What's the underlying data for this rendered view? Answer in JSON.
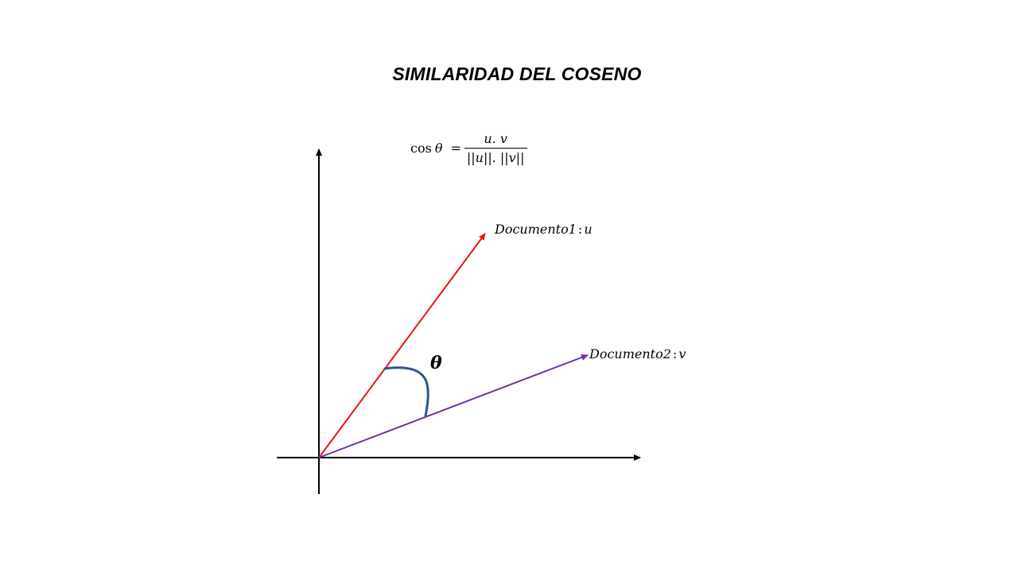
{
  "title": "SIMILARIDAD DEL COSENO",
  "formula": {
    "cos": "cos",
    "theta": "θ",
    "equals": "=",
    "numerator": "u. v",
    "denominator": "||u||. ||v||"
  },
  "vectors": [
    {
      "name": "Documento1",
      "number": "",
      "colon": ":",
      "symbol": "u",
      "color": "#ee1111"
    },
    {
      "name": "Documento2",
      "number": "",
      "colon": ":",
      "symbol": "v",
      "color": "#7030a0"
    }
  ],
  "angle": {
    "symbol": "θ",
    "arc_color": "#2e5689"
  },
  "axis_color": "#000000"
}
